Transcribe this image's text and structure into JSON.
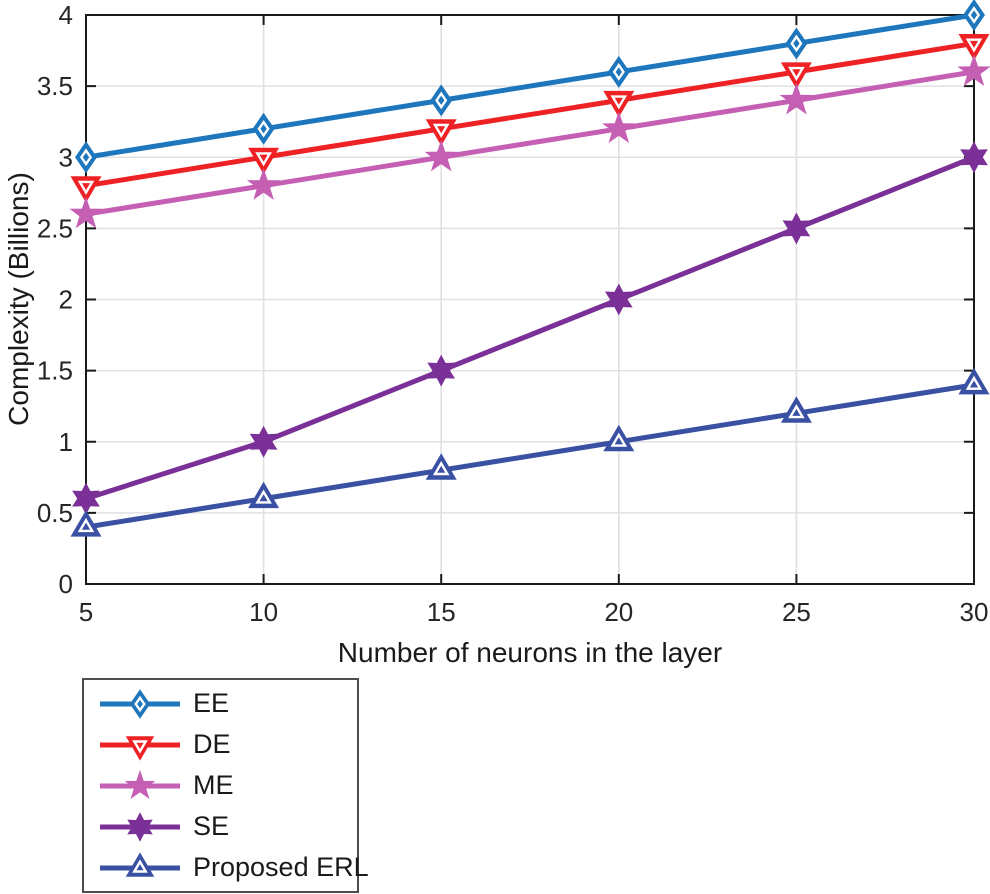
{
  "chart_data": {
    "type": "line",
    "title": "",
    "xlabel": "Number of neurons in the layer",
    "ylabel": "Complexity (Billions)",
    "x": [
      5,
      10,
      15,
      20,
      25,
      30
    ],
    "xlim": [
      5,
      30
    ],
    "ylim": [
      0,
      4
    ],
    "x_ticks": [
      5,
      10,
      15,
      20,
      25,
      30
    ],
    "x_tick_labels": [
      "5",
      "10",
      "15",
      "20",
      "25",
      "30"
    ],
    "y_ticks": [
      0,
      0.5,
      1,
      1.5,
      2,
      2.5,
      3,
      3.5,
      4
    ],
    "y_tick_labels": [
      "0",
      "0.5",
      "1",
      "1.5",
      "2",
      "2.5",
      "3",
      "3.5",
      "4"
    ],
    "grid": true,
    "legend_position": "below-plot-bottom-left",
    "series": [
      {
        "name": "EE",
        "color": "#1e76bd",
        "marker": "diamond",
        "values": [
          3.0,
          3.2,
          3.4,
          3.6,
          3.8,
          4.0
        ]
      },
      {
        "name": "DE",
        "color": "#ee2224",
        "marker": "triangle-down",
        "values": [
          2.8,
          3.0,
          3.2,
          3.4,
          3.6,
          3.8
        ]
      },
      {
        "name": "ME",
        "color": "#c55fb4",
        "marker": "star5",
        "values": [
          2.6,
          2.8,
          3.0,
          3.2,
          3.4,
          3.6
        ]
      },
      {
        "name": "SE",
        "color": "#7a3096",
        "marker": "star6",
        "values": [
          0.6,
          1.0,
          1.5,
          2.0,
          2.5,
          3.0
        ]
      },
      {
        "name": "Proposed ERL",
        "color": "#3a50a3",
        "marker": "triangle-up",
        "values": [
          0.4,
          0.6,
          0.8,
          1.0,
          1.2,
          1.4
        ]
      }
    ],
    "colors": {
      "axis": "#1a1a1a",
      "grid": "#e0e0e0",
      "tick_label": "#262626",
      "axis_title": "#1a1a1a",
      "legend_border": "#4d4d4d",
      "legend_text": "#1a1a1a",
      "background": "#ffffff"
    }
  }
}
